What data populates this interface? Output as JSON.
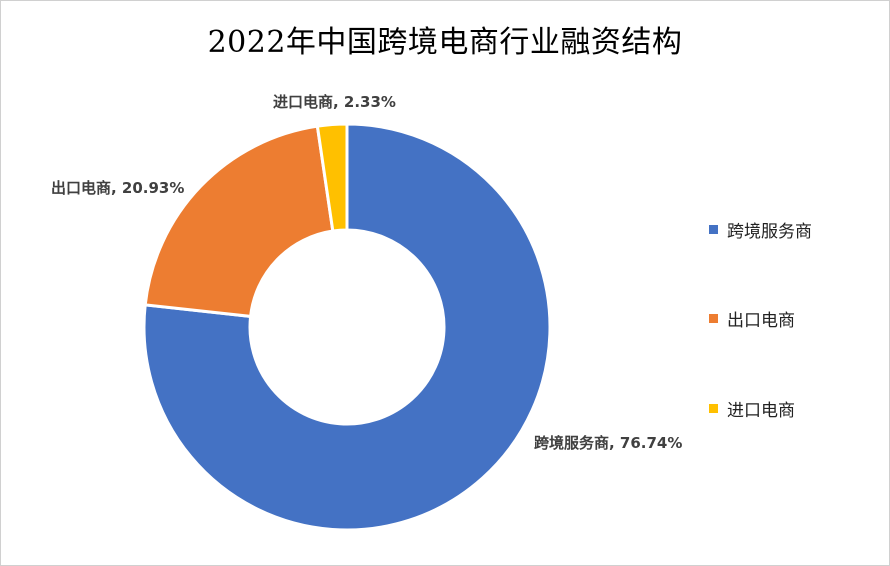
{
  "chart_data": {
    "type": "pie",
    "title": "2022年中国跨境电商行业融资结构",
    "series": [
      {
        "name": "跨境服务商",
        "value": 76.74,
        "label": "跨境服务商, 76.74%",
        "color": "#4472C4"
      },
      {
        "name": "出口电商",
        "value": 20.93,
        "label": "出口电商, 20.93%",
        "color": "#ED7D31"
      },
      {
        "name": "进口电商",
        "value": 2.33,
        "label": "进口电商, 2.33%",
        "color": "#FFC000"
      }
    ],
    "legend_position": "right",
    "donut": true
  }
}
